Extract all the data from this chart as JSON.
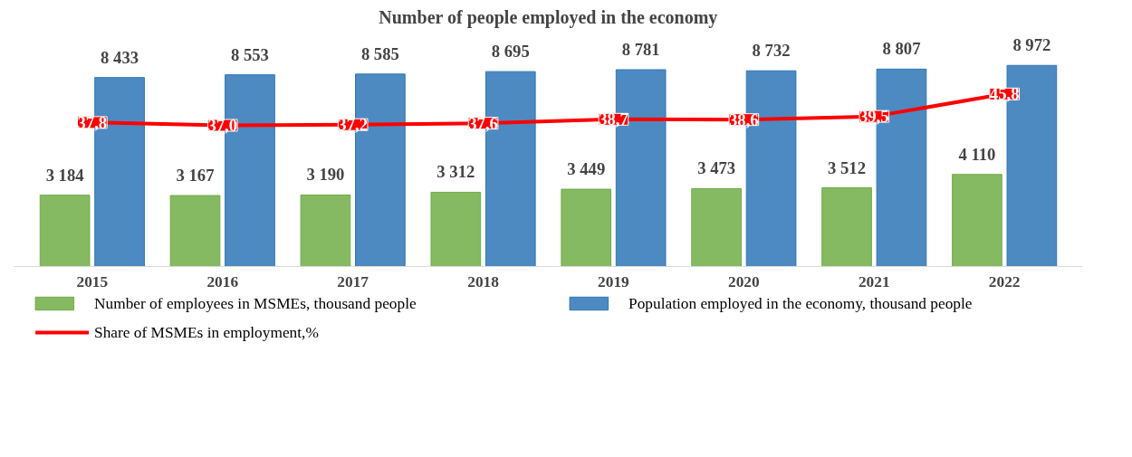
{
  "chart_data": {
    "type": "bar",
    "title": "Number of people employed in the economy",
    "categories": [
      "2015",
      "2016",
      "2017",
      "2018",
      "2019",
      "2020",
      "2021",
      "2022"
    ],
    "series": [
      {
        "name": "Number of employees in MSMEs, thousand people",
        "color": "#70ad47",
        "values": [
          3184,
          3167,
          3190,
          3312,
          3449,
          3473,
          3512,
          4110
        ],
        "value_labels": [
          "3 184",
          "3 167",
          "3 190",
          "3 312",
          "3 449",
          "3 473",
          "3 512",
          "4 110"
        ]
      },
      {
        "name": "Population employed in the economy, thousand people",
        "color": "#2e75b6",
        "values": [
          8433,
          8553,
          8585,
          8695,
          8781,
          8732,
          8807,
          8972
        ],
        "value_labels": [
          "8 433",
          "8 553",
          "8 585",
          "8 695",
          "8 781",
          "8 732",
          "8 807",
          "8 972"
        ]
      },
      {
        "name": "Share of MSMEs in employment,%",
        "type": "line",
        "axis": "y2",
        "color": "#ff0000",
        "values": [
          37.8,
          37.0,
          37.2,
          37.6,
          38.7,
          38.6,
          39.5,
          45.8
        ],
        "value_labels": [
          "37,8",
          "37,0",
          "37,2",
          "37,6",
          "38,7",
          "38,6",
          "39,5",
          "45,8"
        ]
      }
    ],
    "tick_labels": "x",
    "legend": "bottom",
    "marker": "square",
    "line_style": "solid"
  }
}
